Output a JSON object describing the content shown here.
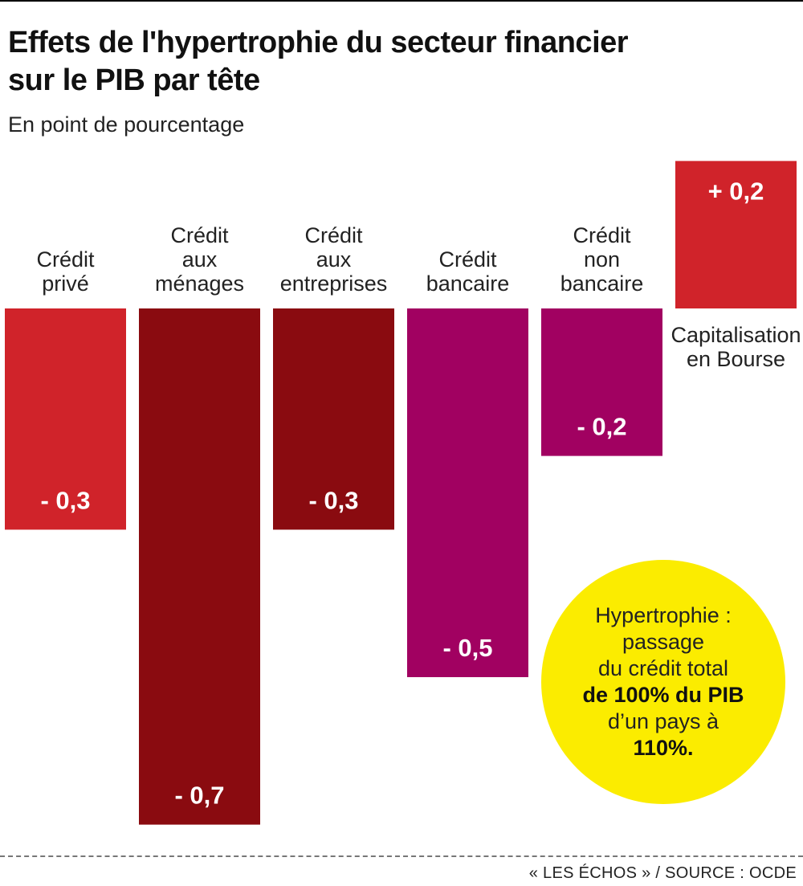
{
  "title_line1": "Effets de l'hypertrophie du secteur financier",
  "title_line2": "sur le PIB par tête",
  "subtitle": "En point de pourcentage",
  "chart_data": {
    "type": "bar",
    "title": "Effets de l'hypertrophie du secteur financier sur le PIB par tête",
    "subtitle": "En point de pourcentage",
    "ylabel": "",
    "xlabel": "",
    "ylim": [
      -0.7,
      0.2
    ],
    "grid": false,
    "legend": "none",
    "categories": [
      {
        "label": [
          "Crédit",
          "privé"
        ],
        "value": -0.3,
        "value_label": "- 0,3",
        "color": "#d0232a"
      },
      {
        "label": [
          "Crédit",
          "aux",
          "ménages"
        ],
        "value": -0.7,
        "value_label": "- 0,7",
        "color": "#8a0b10"
      },
      {
        "label": [
          "Crédit",
          "aux",
          "entreprises"
        ],
        "value": -0.3,
        "value_label": "- 0,3",
        "color": "#8a0b10"
      },
      {
        "label": [
          "Crédit",
          "bancaire"
        ],
        "value": -0.5,
        "value_label": "- 0,5",
        "color": "#a10161"
      },
      {
        "label": [
          "Crédit",
          "non",
          "bancaire"
        ],
        "value": -0.2,
        "value_label": "- 0,2",
        "color": "#a10161"
      },
      {
        "label": [
          "Capitalisation",
          "en Bourse"
        ],
        "value": 0.2,
        "value_label": "+ 0,2",
        "color": "#d0232a"
      }
    ]
  },
  "bubble": {
    "line1": "Hypertrophie :",
    "line2": "passage",
    "line3": "du crédit total",
    "line4_bold": "de 100% du PIB",
    "line5": "d’un pays à",
    "line6_bold": "110%."
  },
  "source": "« LES ÉCHOS » / SOURCE : OCDE"
}
